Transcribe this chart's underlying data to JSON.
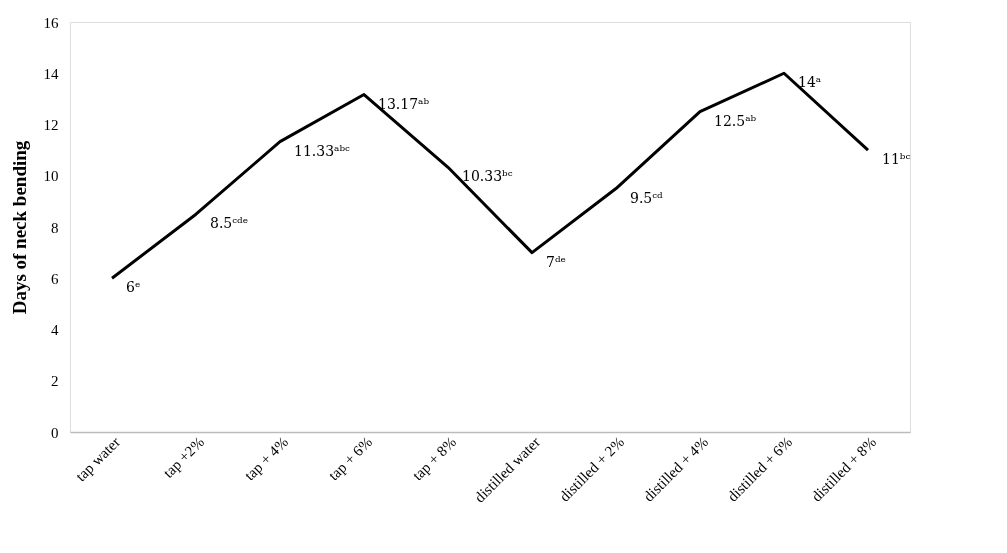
{
  "chart_data": {
    "type": "line",
    "ylabel": "Days of neck bending",
    "categories": [
      "tap water",
      "tap +2%",
      "tap + 4%",
      "tap + 6%",
      "tap + 8%",
      "distilled water",
      "distilled + 2%",
      "distilled + 4%",
      "distilled + 6%",
      "distilled + 8%"
    ],
    "series": [
      {
        "color": "#000000",
        "values": [
          6,
          8.5,
          11.33,
          13.17,
          10.33,
          7,
          9.5,
          12.5,
          14,
          11
        ],
        "value_labels": [
          "6ᵉ",
          "8.5ᶜᵈᵉ",
          "11.33ᵃᵇᶜ",
          "13.17ᵃᵇ",
          "10.33ᵇᶜ",
          "7ᵈᵉ",
          "9.5ᶜᵈ",
          "12.5ᵃᵇ",
          "14ᵃ",
          "11ᵇᶜ"
        ]
      }
    ],
    "ylim": [
      0,
      16
    ],
    "yticks": [
      0,
      2,
      4,
      6,
      8,
      10,
      12,
      14,
      16
    ],
    "grid": false,
    "marker": "none",
    "line_style": "solid"
  }
}
